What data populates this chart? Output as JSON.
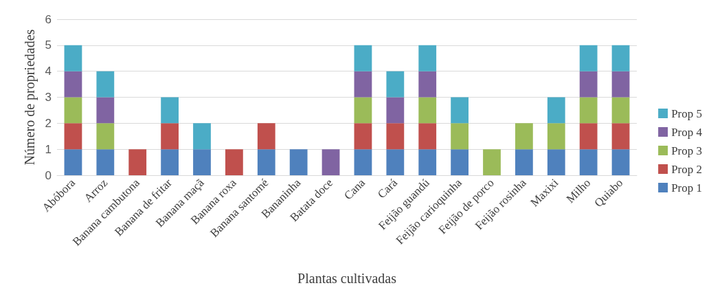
{
  "chart_data": {
    "type": "bar",
    "stacked": true,
    "xlabel": "Plantas cultivadas",
    "ylabel": "Número de propriedades",
    "categories": [
      "Abóbora",
      "Arroz",
      "Banana cambutona",
      "Banana de fritar",
      "Banana maçã",
      "Banana roxa",
      "Banana santomé",
      "Bananinha",
      "Batata doce",
      "Cana",
      "Cará",
      "Feijão guandú",
      "Feijão carioquinha",
      "Feijão de porco",
      "Feijão rosinha",
      "Maxixi",
      "Milho",
      "Quiabo"
    ],
    "series": [
      {
        "name": "Prop 1",
        "color": "#4f81bd",
        "values": [
          1,
          1,
          0,
          1,
          1,
          0,
          1,
          1,
          0,
          1,
          1,
          1,
          1,
          0,
          1,
          1,
          1,
          1
        ]
      },
      {
        "name": "Prop 2",
        "color": "#c0504d",
        "values": [
          1,
          0,
          1,
          1,
          0,
          1,
          1,
          0,
          0,
          1,
          1,
          1,
          0,
          0,
          0,
          0,
          1,
          1
        ]
      },
      {
        "name": "Prop 3",
        "color": "#9bbb59",
        "values": [
          1,
          1,
          0,
          0,
          0,
          0,
          0,
          0,
          0,
          1,
          0,
          1,
          1,
          1,
          1,
          1,
          1,
          1
        ]
      },
      {
        "name": "Prop 4",
        "color": "#8064a2",
        "values": [
          1,
          1,
          0,
          0,
          0,
          0,
          0,
          0,
          1,
          1,
          1,
          1,
          0,
          0,
          0,
          0,
          1,
          1
        ]
      },
      {
        "name": "Prop 5",
        "color": "#4bacc6",
        "values": [
          1,
          1,
          0,
          1,
          1,
          0,
          0,
          0,
          0,
          1,
          1,
          1,
          1,
          0,
          0,
          1,
          1,
          1
        ]
      }
    ],
    "ylim": [
      0,
      6
    ],
    "yticks": [
      0,
      1,
      2,
      3,
      4,
      5,
      6
    ],
    "grid": "y",
    "legend": "right"
  }
}
